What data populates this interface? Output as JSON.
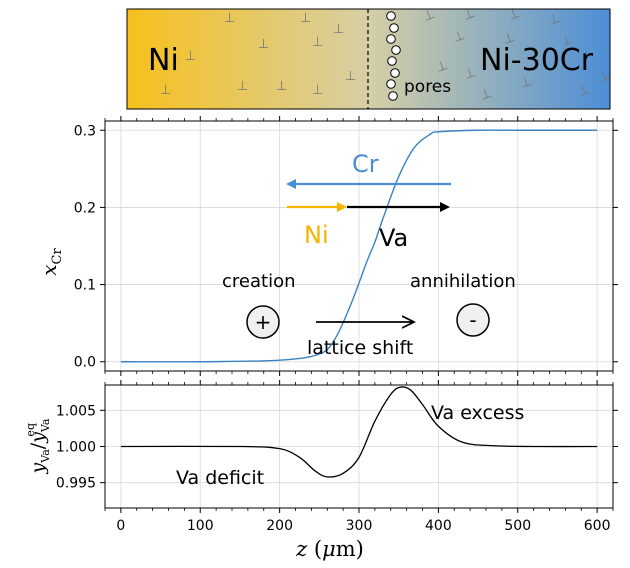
{
  "colors": {
    "ni_orange": "#f5b400",
    "cr_blue": "#4a8fd4",
    "curve_blue": "#3b82c4",
    "grid": "#d8d8d8",
    "black": "#000000"
  },
  "schematic": {
    "left_label": "Ni",
    "right_label": "Ni-30Cr",
    "pores_label": "pores",
    "gradient_left": "#f8c01c",
    "gradient_mid": "#d6cfa6",
    "gradient_right": "#4d8ed6",
    "dislocation_symbol": "⊥"
  },
  "annotations": {
    "cr": "Cr",
    "ni": "Ni",
    "va": "Va",
    "creation": "creation",
    "annihilation": "annihilation",
    "plus": "+",
    "minus": "-",
    "lattice_shift": "lattice shift",
    "va_deficit": "Va deficit",
    "va_excess": "Va excess"
  },
  "chart_data": [
    {
      "type": "line",
      "ylabel": "x_Cr",
      "xlim": [
        -20,
        620
      ],
      "ylim": [
        -0.012,
        0.312
      ],
      "yticks": [
        0.0,
        0.1,
        0.2,
        0.3
      ],
      "ytick_labels": [
        "0.0",
        "0.1",
        "0.2",
        "0.3"
      ],
      "grid": true,
      "series": [
        {
          "x": [
            0,
            100,
            200,
            250,
            270,
            290,
            310,
            320,
            330,
            350,
            370,
            390,
            400,
            450,
            500,
            600
          ],
          "y": [
            0.0,
            0.0,
            0.002,
            0.01,
            0.03,
            0.075,
            0.13,
            0.155,
            0.185,
            0.24,
            0.278,
            0.295,
            0.298,
            0.3,
            0.3,
            0.3
          ]
        }
      ]
    },
    {
      "type": "line",
      "ylabel": "y_Va / y_Va^eq",
      "xlabel": "z (μm)",
      "xlim": [
        -20,
        620
      ],
      "ylim": [
        0.9915,
        1.0085
      ],
      "xticks": [
        0,
        100,
        200,
        300,
        400,
        500,
        600
      ],
      "xtick_labels": [
        "0",
        "100",
        "200",
        "300",
        "400",
        "500",
        "600"
      ],
      "yticks": [
        0.995,
        1.0,
        1.005
      ],
      "ytick_labels": [
        "0.995",
        "1.000",
        "1.005"
      ],
      "grid": true,
      "series": [
        {
          "x": [
            0,
            150,
            200,
            225,
            245,
            260,
            280,
            300,
            320,
            340,
            352,
            365,
            380,
            400,
            430,
            470,
            520,
            600
          ],
          "y": [
            1.0,
            1.0,
            0.9997,
            0.9985,
            0.9966,
            0.9958,
            0.9963,
            0.9985,
            1.0035,
            1.0072,
            1.0082,
            1.0078,
            1.0058,
            1.0028,
            1.0006,
            1.0001,
            1.0,
            1.0
          ]
        }
      ]
    }
  ]
}
